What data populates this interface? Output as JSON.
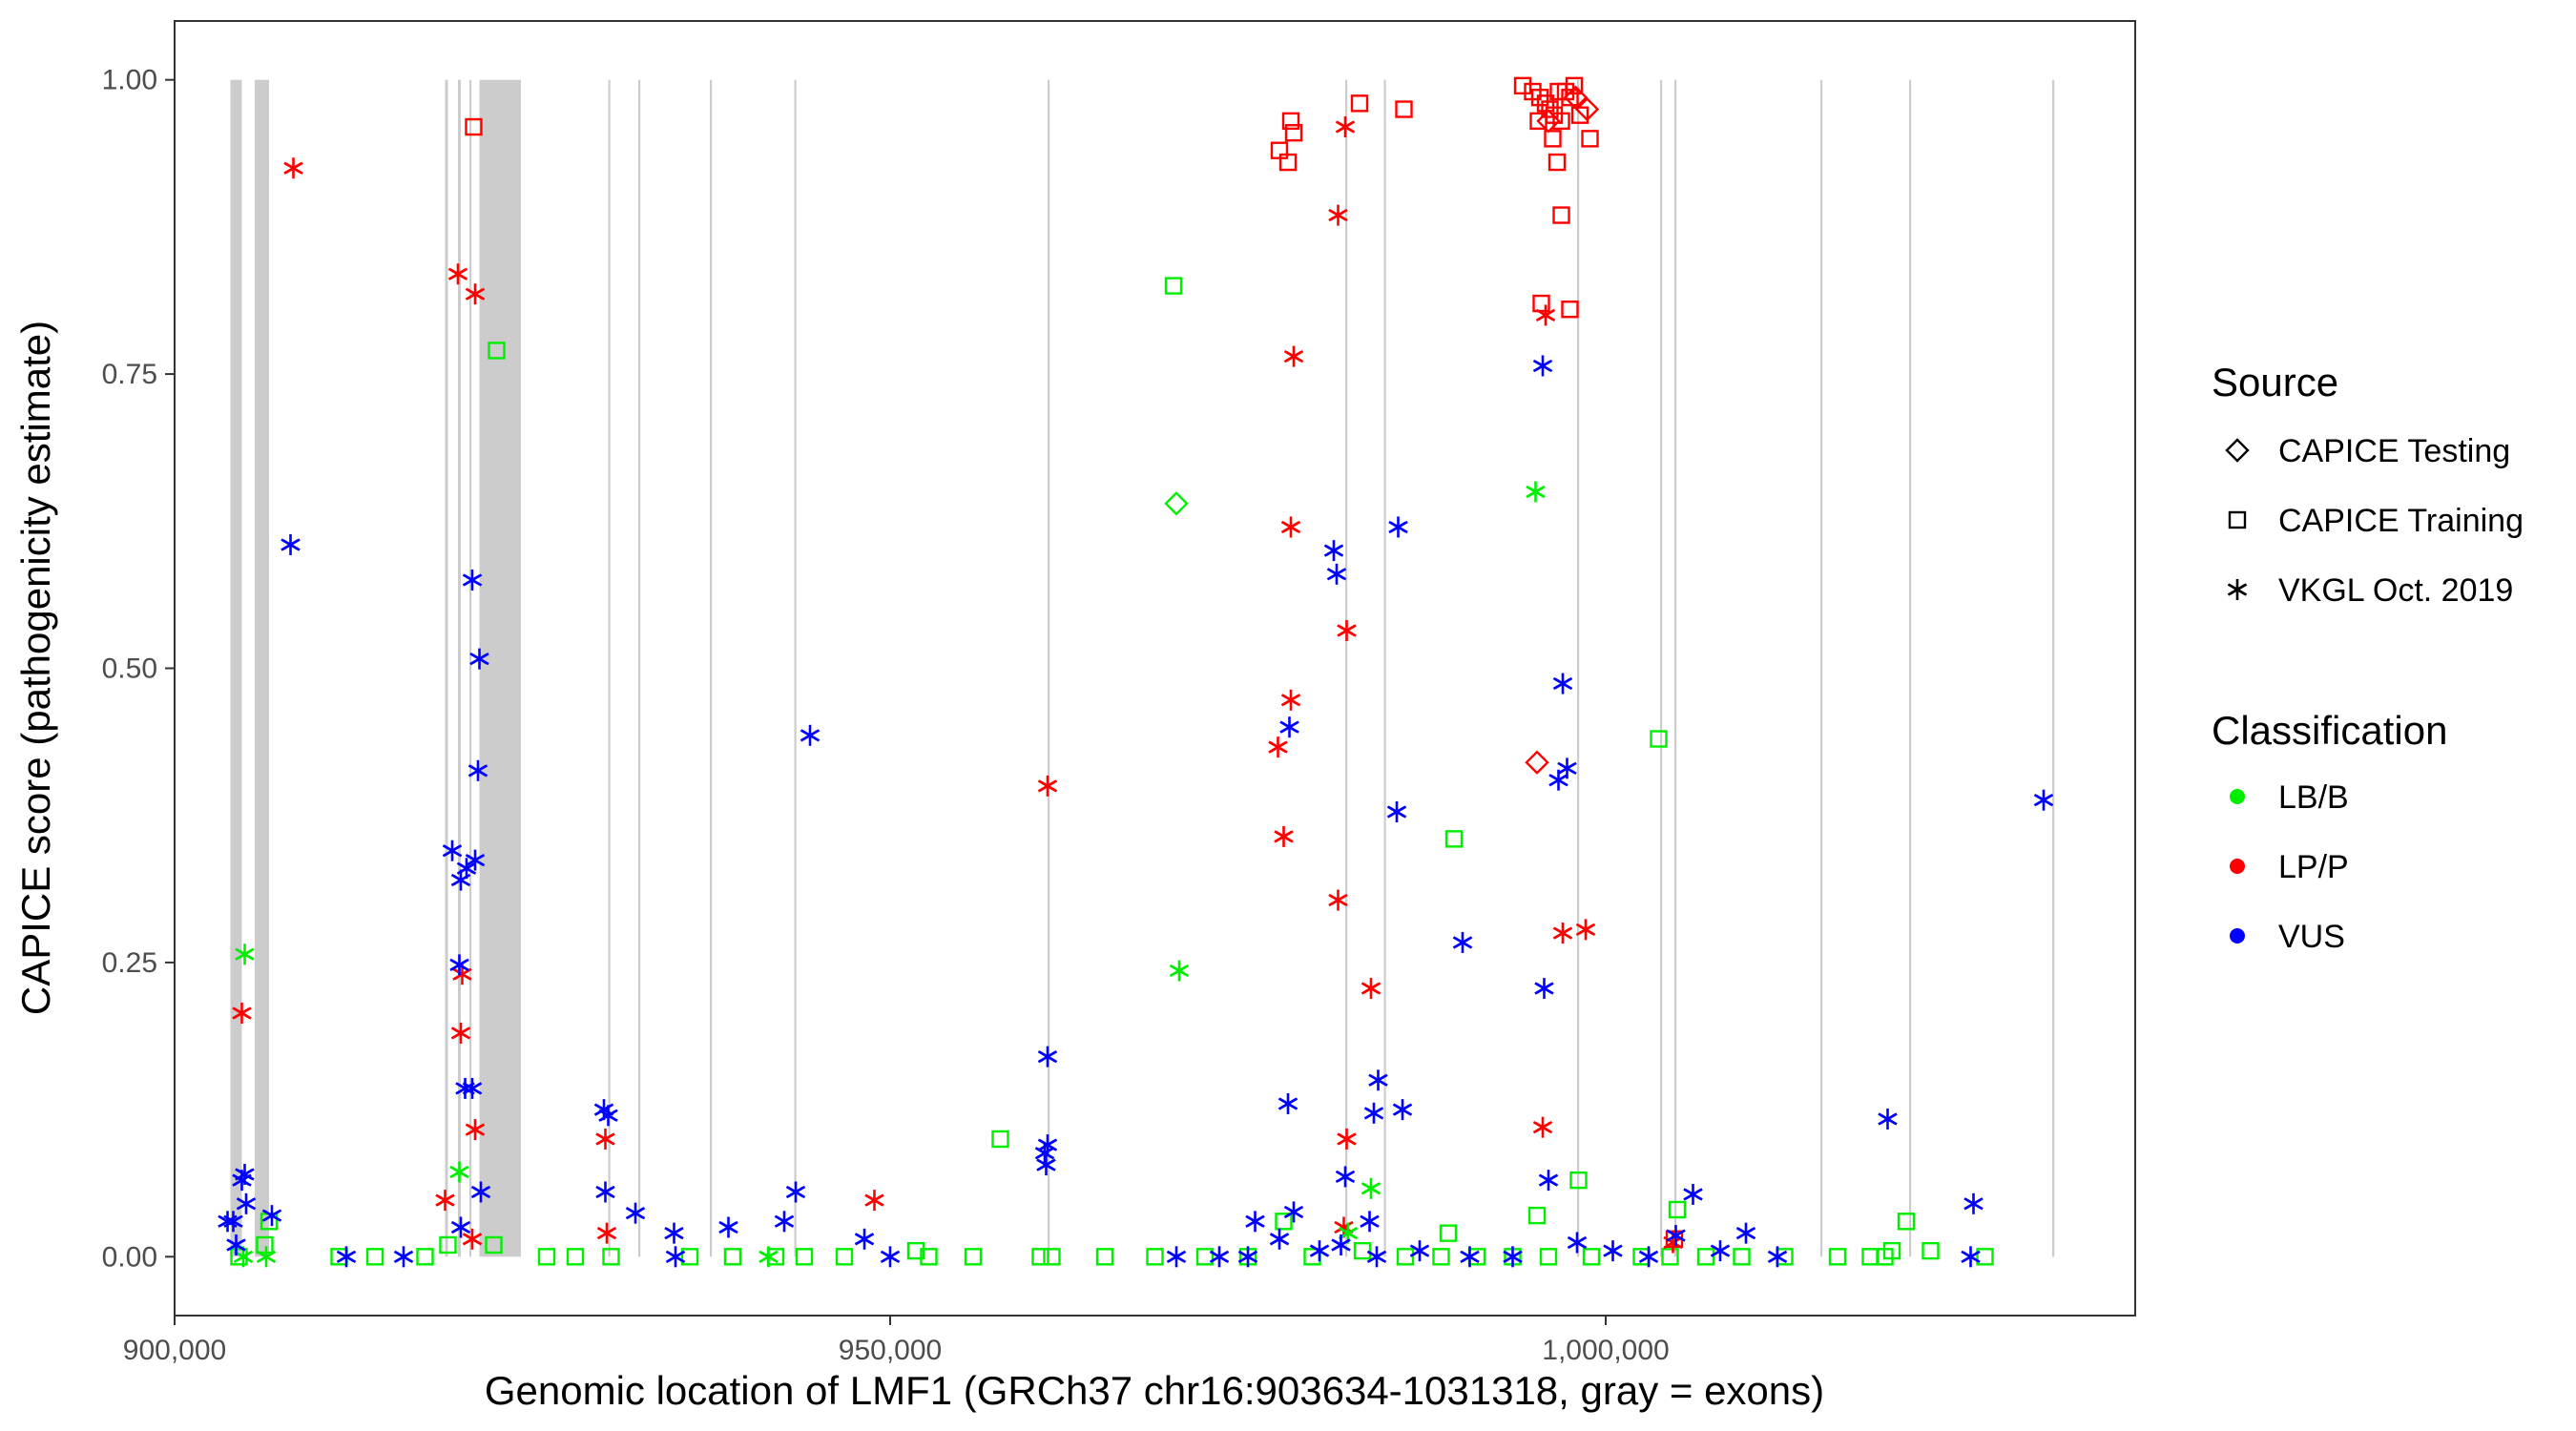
{
  "chart_data": {
    "type": "scatter",
    "title": "",
    "xlabel": "Genomic location of LMF1 (GRCh37 chr16:903634-1031318, gray = exons)",
    "ylabel": "CAPICE score (pathogenicity estimate)",
    "xlim": [
      900000,
      1037000
    ],
    "ylim": [
      -0.05,
      1.05
    ],
    "x_ticks": [
      900000,
      950000,
      1000000
    ],
    "x_tick_labels": [
      "900,000",
      "950,000",
      "1,000,000"
    ],
    "y_ticks": [
      0,
      0.25,
      0.5,
      0.75,
      1.0
    ],
    "y_tick_labels": [
      "0.00",
      "0.25",
      "0.50",
      "0.75",
      "1.00"
    ],
    "exons": [
      [
        903900,
        904700
      ],
      [
        905600,
        906600
      ],
      [
        918900,
        919100
      ],
      [
        919800,
        920000
      ],
      [
        920600,
        920700
      ],
      [
        921300,
        924200
      ],
      [
        930300,
        930400
      ],
      [
        932400,
        932500
      ],
      [
        937400,
        937500
      ],
      [
        943300,
        943400
      ],
      [
        961000,
        961100
      ],
      [
        981800,
        981900
      ],
      [
        984500,
        984600
      ],
      [
        998000,
        998100
      ],
      [
        1003800,
        1003900
      ],
      [
        1004800,
        1004900
      ],
      [
        1015000,
        1015100
      ],
      [
        1021200,
        1021300
      ],
      [
        1031200,
        1031300
      ]
    ],
    "legend": {
      "source_title": "Source",
      "source_items": [
        {
          "label": "CAPICE Testing",
          "shape": "diamond"
        },
        {
          "label": "CAPICE Training",
          "shape": "square"
        },
        {
          "label": "VKGL Oct. 2019",
          "shape": "asterisk"
        }
      ],
      "class_title": "Classification",
      "class_items": [
        {
          "label": "LB/B",
          "color": "#00ee00"
        },
        {
          "label": "LP/P",
          "color": "#ff0000"
        },
        {
          "label": "VUS",
          "color": "#0000ff"
        }
      ]
    },
    "colors": {
      "LB/B": "#00ee00",
      "LP/P": "#ff0000",
      "VUS": "#0000ff"
    },
    "series": [
      {
        "name": "CAPICE Training - LP/P",
        "source": "square",
        "class": "LP/P",
        "points": [
          [
            920900,
            0.96
          ],
          [
            977200,
            0.94
          ],
          [
            977800,
            0.93
          ],
          [
            978000,
            0.965
          ],
          [
            978200,
            0.955
          ],
          [
            982800,
            0.98
          ],
          [
            985900,
            0.975
          ],
          [
            994200,
            0.995
          ],
          [
            994900,
            0.99
          ],
          [
            995400,
            0.985
          ],
          [
            995800,
            0.98
          ],
          [
            996100,
            0.975
          ],
          [
            996400,
            0.97
          ],
          [
            996700,
            0.99
          ],
          [
            996900,
            0.965
          ],
          [
            997200,
            0.99
          ],
          [
            997500,
            0.985
          ],
          [
            997800,
            0.995
          ],
          [
            998200,
            0.97
          ],
          [
            995300,
            0.965
          ],
          [
            996300,
            0.95
          ],
          [
            996600,
            0.93
          ],
          [
            998900,
            0.95
          ],
          [
            996900,
            0.885
          ],
          [
            995500,
            0.81
          ],
          [
            997500,
            0.805
          ],
          [
            1004800,
            0.015
          ]
        ]
      },
      {
        "name": "CAPICE Testing - LP/P",
        "source": "diamond",
        "class": "LP/P",
        "points": [
          [
            995200,
            0.42
          ],
          [
            998700,
            0.975
          ],
          [
            997900,
            0.985
          ],
          [
            996000,
            0.965
          ]
        ]
      },
      {
        "name": "CAPICE Training - LB/B",
        "source": "square",
        "class": "LB/B",
        "points": [
          [
            922500,
            0.77
          ],
          [
            969800,
            0.825
          ],
          [
            957700,
            0.1
          ],
          [
            989400,
            0.355
          ],
          [
            1003700,
            0.44
          ],
          [
            998100,
            0.065
          ],
          [
            995200,
            0.035
          ],
          [
            1005000,
            0.04
          ],
          [
            906600,
            0.03
          ],
          [
            906300,
            0.01
          ],
          [
            919100,
            0.01
          ],
          [
            922300,
            0.01
          ],
          [
            926000,
            0.0
          ],
          [
            928000,
            0.0
          ],
          [
            930500,
            0.0
          ],
          [
            936000,
            0.0
          ],
          [
            939000,
            0.0
          ],
          [
            944000,
            0.0
          ],
          [
            946800,
            0.0
          ],
          [
            951800,
            0.005
          ],
          [
            952700,
            0.0
          ],
          [
            955800,
            0.0
          ],
          [
            960500,
            0.0
          ],
          [
            961300,
            0.0
          ],
          [
            968500,
            0.0
          ],
          [
            972000,
            0.0
          ],
          [
            975000,
            0.0
          ],
          [
            977500,
            0.03
          ],
          [
            979500,
            0.0
          ],
          [
            983000,
            0.005
          ],
          [
            986000,
            0.0
          ],
          [
            988500,
            0.0
          ],
          [
            989000,
            0.02
          ],
          [
            991000,
            0.0
          ],
          [
            993500,
            0.0
          ],
          [
            996000,
            0.0
          ],
          [
            999000,
            0.0
          ],
          [
            1002500,
            0.0
          ],
          [
            1004500,
            0.0
          ],
          [
            1007000,
            0.0
          ],
          [
            1012500,
            0.0
          ],
          [
            1016200,
            0.0
          ],
          [
            1018500,
            0.0
          ],
          [
            1021000,
            0.03
          ],
          [
            1022700,
            0.005
          ],
          [
            1026500,
            0.0
          ],
          [
            904500,
            0.0
          ],
          [
            911500,
            0.0
          ],
          [
            914000,
            0.0
          ],
          [
            917500,
            0.0
          ],
          [
            942000,
            0.0
          ],
          [
            965000,
            0.0
          ],
          [
            1009500,
            0.0
          ],
          [
            1019500,
            0.0
          ],
          [
            1020000,
            0.005
          ]
        ]
      },
      {
        "name": "CAPICE Testing - LB/B",
        "source": "diamond",
        "class": "LB/B",
        "points": [
          [
            970000,
            0.64
          ]
        ]
      },
      {
        "name": "VKGL - LP/P",
        "source": "asterisk",
        "class": "LP/P",
        "points": [
          [
            908300,
            0.925
          ],
          [
            904700,
            0.207
          ],
          [
            919800,
            0.835
          ],
          [
            921000,
            0.818
          ],
          [
            920100,
            0.24
          ],
          [
            920000,
            0.19
          ],
          [
            921000,
            0.108
          ],
          [
            918900,
            0.048
          ],
          [
            920800,
            0.015
          ],
          [
            930100,
            0.1
          ],
          [
            930200,
            0.02
          ],
          [
            948900,
            0.048
          ],
          [
            961000,
            0.4
          ],
          [
            978200,
            0.765
          ],
          [
            981800,
            0.96
          ],
          [
            981300,
            0.885
          ],
          [
            978000,
            0.62
          ],
          [
            981900,
            0.532
          ],
          [
            978000,
            0.473
          ],
          [
            977100,
            0.433
          ],
          [
            977500,
            0.357
          ],
          [
            981300,
            0.303
          ],
          [
            983600,
            0.228
          ],
          [
            981900,
            0.1
          ],
          [
            981700,
            0.025
          ],
          [
            995800,
            0.8
          ],
          [
            995600,
            0.11
          ],
          [
            997000,
            0.275
          ],
          [
            998600,
            0.278
          ],
          [
            1004700,
            0.012
          ]
        ]
      },
      {
        "name": "VKGL - LB/B",
        "source": "asterisk",
        "class": "LB/B",
        "points": [
          [
            904900,
            0.257
          ],
          [
            919900,
            0.072
          ],
          [
            970200,
            0.243
          ],
          [
            983600,
            0.058
          ],
          [
            995100,
            0.65
          ],
          [
            982000,
            0.02
          ],
          [
            904800,
            0.0
          ],
          [
            906400,
            0.0
          ],
          [
            941500,
            0.0
          ]
        ]
      },
      {
        "name": "VKGL - VUS",
        "source": "asterisk",
        "class": "VUS",
        "points": [
          [
            908100,
            0.605
          ],
          [
            920800,
            0.575
          ],
          [
            921300,
            0.508
          ],
          [
            921200,
            0.413
          ],
          [
            919400,
            0.345
          ],
          [
            921000,
            0.337
          ],
          [
            920000,
            0.32
          ],
          [
            920400,
            0.33
          ],
          [
            919900,
            0.248
          ],
          [
            920300,
            0.143
          ],
          [
            920800,
            0.143
          ],
          [
            921400,
            0.055
          ],
          [
            920000,
            0.025
          ],
          [
            904900,
            0.07
          ],
          [
            904700,
            0.065
          ],
          [
            905000,
            0.045
          ],
          [
            904100,
            0.03
          ],
          [
            906800,
            0.035
          ],
          [
            930000,
            0.125
          ],
          [
            930300,
            0.12
          ],
          [
            930100,
            0.055
          ],
          [
            932200,
            0.037
          ],
          [
            934900,
            0.02
          ],
          [
            938700,
            0.025
          ],
          [
            942600,
            0.03
          ],
          [
            943400,
            0.055
          ],
          [
            944400,
            0.443
          ],
          [
            948200,
            0.015
          ],
          [
            961000,
            0.17
          ],
          [
            961000,
            0.095
          ],
          [
            960800,
            0.088
          ],
          [
            960900,
            0.078
          ],
          [
            977800,
            0.13
          ],
          [
            977900,
            0.45
          ],
          [
            981000,
            0.6
          ],
          [
            981200,
            0.58
          ],
          [
            985500,
            0.62
          ],
          [
            985400,
            0.378
          ],
          [
            984100,
            0.15
          ],
          [
            985800,
            0.125
          ],
          [
            983800,
            0.122
          ],
          [
            981800,
            0.068
          ],
          [
            990000,
            0.267
          ],
          [
            995600,
            0.757
          ],
          [
            997000,
            0.487
          ],
          [
            997300,
            0.415
          ],
          [
            996700,
            0.405
          ],
          [
            995700,
            0.228
          ],
          [
            996000,
            0.065
          ],
          [
            1006100,
            0.053
          ],
          [
            1019700,
            0.117
          ],
          [
            1030600,
            0.388
          ],
          [
            1025700,
            0.045
          ],
          [
            1009800,
            0.02
          ],
          [
            975500,
            0.03
          ],
          [
            978200,
            0.038
          ],
          [
            977200,
            0.015
          ],
          [
            981500,
            0.01
          ],
          [
            983500,
            0.03
          ],
          [
            987000,
            0.005
          ],
          [
            993500,
            0.0
          ],
          [
            998000,
            0.012
          ],
          [
            1004900,
            0.018
          ],
          [
            1008000,
            0.005
          ],
          [
            1003000,
            0.0
          ],
          [
            975000,
            0.0
          ],
          [
            912000,
            0.0
          ],
          [
            916000,
            0.0
          ],
          [
            935000,
            0.0
          ],
          [
            950000,
            0.0
          ],
          [
            970000,
            0.0
          ],
          [
            973000,
            0.0
          ],
          [
            980000,
            0.005
          ],
          [
            984000,
            0.0
          ],
          [
            990500,
            0.0
          ],
          [
            1000500,
            0.005
          ],
          [
            1012000,
            0.0
          ],
          [
            1025500,
            0.0
          ],
          [
            904300,
            0.01
          ],
          [
            903700,
            0.03
          ]
        ]
      }
    ]
  }
}
